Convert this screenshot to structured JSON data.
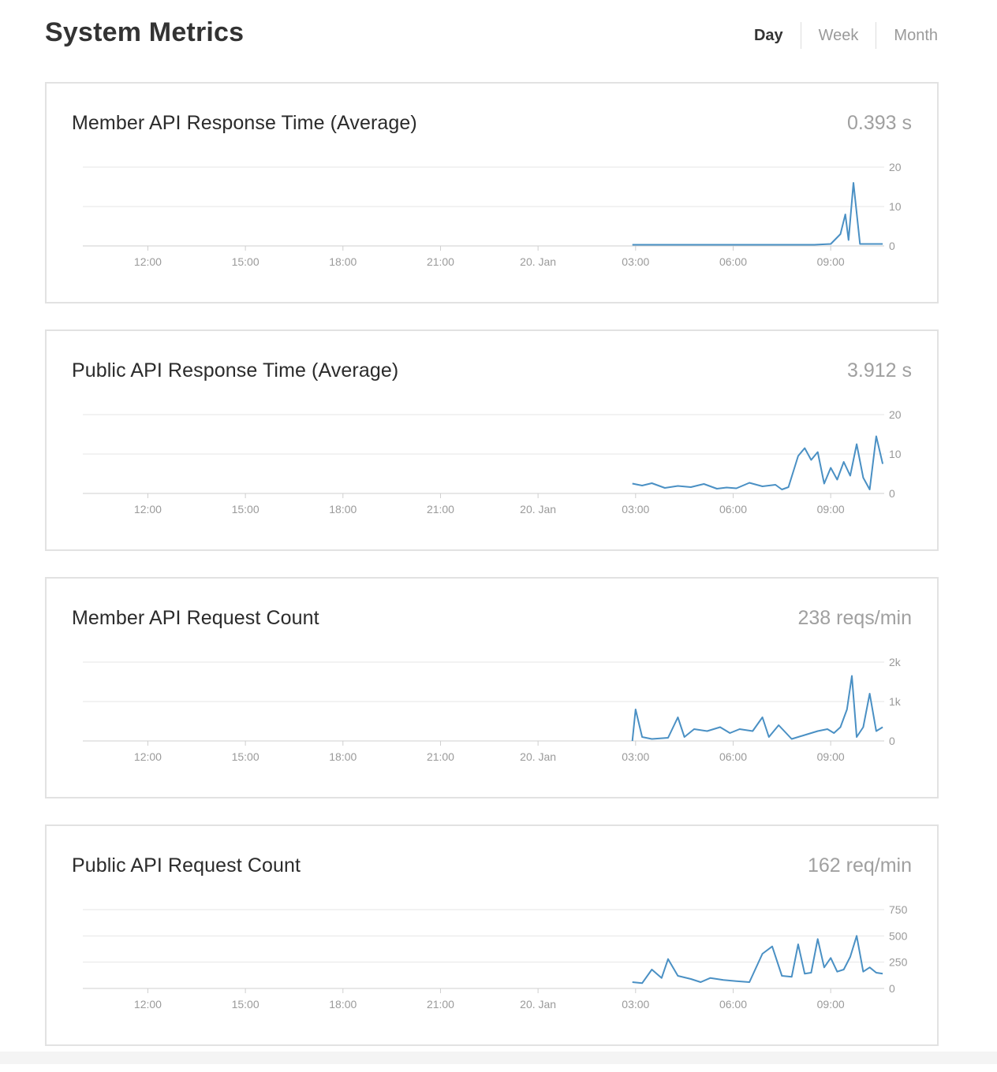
{
  "header": {
    "title": "System Metrics",
    "tabs": [
      {
        "label": "Day",
        "active": true
      },
      {
        "label": "Week",
        "active": false
      },
      {
        "label": "Month",
        "active": false
      }
    ]
  },
  "colors": {
    "series": "#4a90c4",
    "grid": "#e6e6e6",
    "axis": "#cfcfcf"
  },
  "x_axis_labels": [
    "12:00",
    "15:00",
    "18:00",
    "21:00",
    "20. Jan",
    "03:00",
    "06:00",
    "09:00"
  ],
  "cards": [
    {
      "title": "Member API Response Time (Average)",
      "value": "0.393 s",
      "chart_data": {
        "type": "line",
        "x_unit": "hours since 10:00 (19 Jan)",
        "xlim": [
          0,
          24.5
        ],
        "x_ticks": [
          2,
          5,
          8,
          11,
          14,
          17,
          20,
          23
        ],
        "x_tick_labels": [
          "12:00",
          "15:00",
          "18:00",
          "21:00",
          "20. Jan",
          "03:00",
          "06:00",
          "09:00"
        ],
        "ylim": [
          0,
          20
        ],
        "y_ticks": [
          0,
          10,
          20
        ],
        "y_tick_labels": [
          "0",
          "10",
          "20"
        ],
        "series": [
          {
            "name": "",
            "x": [
              16.9,
              18,
              19,
              20,
              21,
              22,
              22.5,
              23,
              23.3,
              23.45,
              23.55,
              23.7,
              23.9,
              24.1,
              24.3,
              24.6
            ],
            "y": [
              0.3,
              0.3,
              0.3,
              0.3,
              0.3,
              0.3,
              0.3,
              0.5,
              3,
              8,
              1.5,
              16,
              0.5,
              0.5,
              0.5,
              0.5
            ]
          }
        ]
      }
    },
    {
      "title": "Public API Response Time (Average)",
      "value": "3.912 s",
      "chart_data": {
        "type": "line",
        "x_unit": "hours since 10:00 (19 Jan)",
        "xlim": [
          0,
          24.5
        ],
        "x_ticks": [
          2,
          5,
          8,
          11,
          14,
          17,
          20,
          23
        ],
        "x_tick_labels": [
          "12:00",
          "15:00",
          "18:00",
          "21:00",
          "20. Jan",
          "03:00",
          "06:00",
          "09:00"
        ],
        "ylim": [
          0,
          20
        ],
        "y_ticks": [
          0,
          10,
          20
        ],
        "y_tick_labels": [
          "0",
          "10",
          "20"
        ],
        "series": [
          {
            "name": "",
            "x": [
              16.9,
              17.2,
              17.5,
              17.9,
              18.3,
              18.7,
              19.1,
              19.5,
              19.8,
              20.1,
              20.5,
              20.9,
              21.3,
              21.5,
              21.7,
              22.0,
              22.2,
              22.4,
              22.6,
              22.8,
              23.0,
              23.2,
              23.4,
              23.6,
              23.8,
              24.0,
              24.2,
              24.4,
              24.6
            ],
            "y": [
              2.5,
              2.0,
              2.6,
              1.4,
              1.9,
              1.6,
              2.4,
              1.2,
              1.5,
              1.3,
              2.7,
              1.8,
              2.2,
              1.0,
              1.6,
              9.5,
              11.5,
              8.5,
              10.5,
              2.5,
              6.5,
              3.5,
              8.0,
              4.5,
              12.5,
              4.0,
              1.0,
              14.5,
              7.5
            ]
          }
        ]
      }
    },
    {
      "title": "Member API Request Count",
      "value": "238 reqs/min",
      "chart_data": {
        "type": "line",
        "x_unit": "hours since 10:00 (19 Jan)",
        "xlim": [
          0,
          24.5
        ],
        "x_ticks": [
          2,
          5,
          8,
          11,
          14,
          17,
          20,
          23
        ],
        "x_tick_labels": [
          "12:00",
          "15:00",
          "18:00",
          "21:00",
          "20. Jan",
          "03:00",
          "06:00",
          "09:00"
        ],
        "ylim": [
          0,
          2000
        ],
        "y_ticks": [
          0,
          1000,
          2000
        ],
        "y_tick_labels": [
          "0",
          "1k",
          "2k"
        ],
        "series": [
          {
            "name": "",
            "x": [
              16.9,
              17.0,
              17.2,
              17.5,
              18.0,
              18.3,
              18.5,
              18.8,
              19.2,
              19.6,
              19.9,
              20.2,
              20.6,
              20.9,
              21.1,
              21.4,
              21.8,
              22.2,
              22.6,
              22.9,
              23.1,
              23.3,
              23.5,
              23.65,
              23.8,
              24.0,
              24.2,
              24.4,
              24.6
            ],
            "y": [
              0,
              800,
              100,
              50,
              80,
              600,
              100,
              300,
              250,
              350,
              200,
              300,
              250,
              600,
              100,
              400,
              50,
              150,
              250,
              300,
              200,
              350,
              800,
              1650,
              100,
              350,
              1200,
              250,
              350
            ]
          }
        ]
      }
    },
    {
      "title": "Public API Request Count",
      "value": "162 req/min",
      "chart_data": {
        "type": "line",
        "x_unit": "hours since 10:00 (19 Jan)",
        "xlim": [
          0,
          24.5
        ],
        "x_ticks": [
          2,
          5,
          8,
          11,
          14,
          17,
          20,
          23
        ],
        "x_tick_labels": [
          "12:00",
          "15:00",
          "18:00",
          "21:00",
          "20. Jan",
          "03:00",
          "06:00",
          "09:00"
        ],
        "ylim": [
          0,
          750
        ],
        "y_ticks": [
          0,
          250,
          500,
          750
        ],
        "y_tick_labels": [
          "0",
          "250",
          "500",
          "750"
        ],
        "series": [
          {
            "name": "",
            "x": [
              16.9,
              17.2,
              17.5,
              17.8,
              18.0,
              18.3,
              18.7,
              19.0,
              19.3,
              19.7,
              20.1,
              20.5,
              20.9,
              21.2,
              21.5,
              21.8,
              22.0,
              22.2,
              22.4,
              22.6,
              22.8,
              23.0,
              23.2,
              23.4,
              23.6,
              23.8,
              24.0,
              24.2,
              24.4,
              24.6
            ],
            "y": [
              60,
              50,
              180,
              100,
              280,
              120,
              90,
              60,
              100,
              80,
              70,
              60,
              330,
              400,
              120,
              110,
              420,
              140,
              150,
              470,
              200,
              290,
              160,
              180,
              300,
              500,
              160,
              200,
              150,
              140
            ]
          }
        ]
      }
    }
  ]
}
